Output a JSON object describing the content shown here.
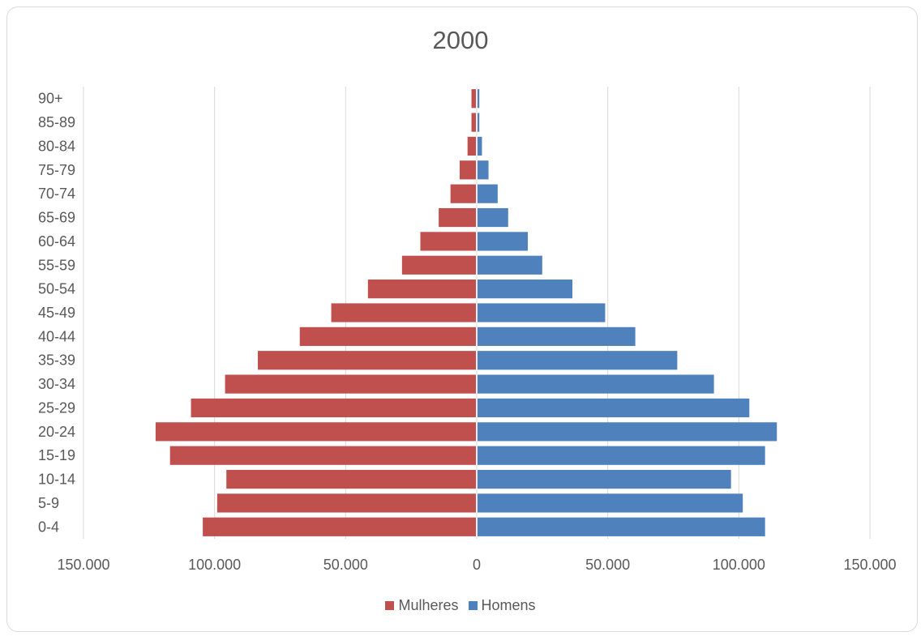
{
  "chart_data": {
    "type": "bar",
    "orientation": "horizontal",
    "title": "2000",
    "categories": [
      "0-4",
      "5-9",
      "10-14",
      "15-19",
      "20-24",
      "25-29",
      "30-34",
      "35-39",
      "40-44",
      "45-49",
      "50-54",
      "55-59",
      "60-64",
      "65-69",
      "70-74",
      "75-79",
      "80-84",
      "85-89",
      "90+"
    ],
    "series": [
      {
        "name": "Mulheres",
        "color": "#c0504d",
        "side": "left",
        "values": [
          104500,
          99000,
          95500,
          117000,
          122500,
          109000,
          96000,
          83500,
          67500,
          55500,
          41500,
          28500,
          21500,
          14500,
          10000,
          6500,
          3500,
          2000,
          2000
        ]
      },
      {
        "name": "Homens",
        "color": "#4f81bd",
        "side": "right",
        "values": [
          110000,
          101500,
          97000,
          110000,
          114500,
          104000,
          90500,
          76500,
          60500,
          49000,
          36500,
          25000,
          19500,
          12000,
          8000,
          4500,
          2000,
          1000,
          1000
        ]
      }
    ],
    "xlim": [
      -150000,
      150000
    ],
    "xticks": [
      -150000,
      -100000,
      -50000,
      0,
      50000,
      100000,
      150000
    ],
    "xtick_labels": [
      "150.000",
      "100.000",
      "50.000",
      "0",
      "50.000",
      "100.000",
      "150.000"
    ],
    "grid": true,
    "legend_position": "bottom"
  }
}
